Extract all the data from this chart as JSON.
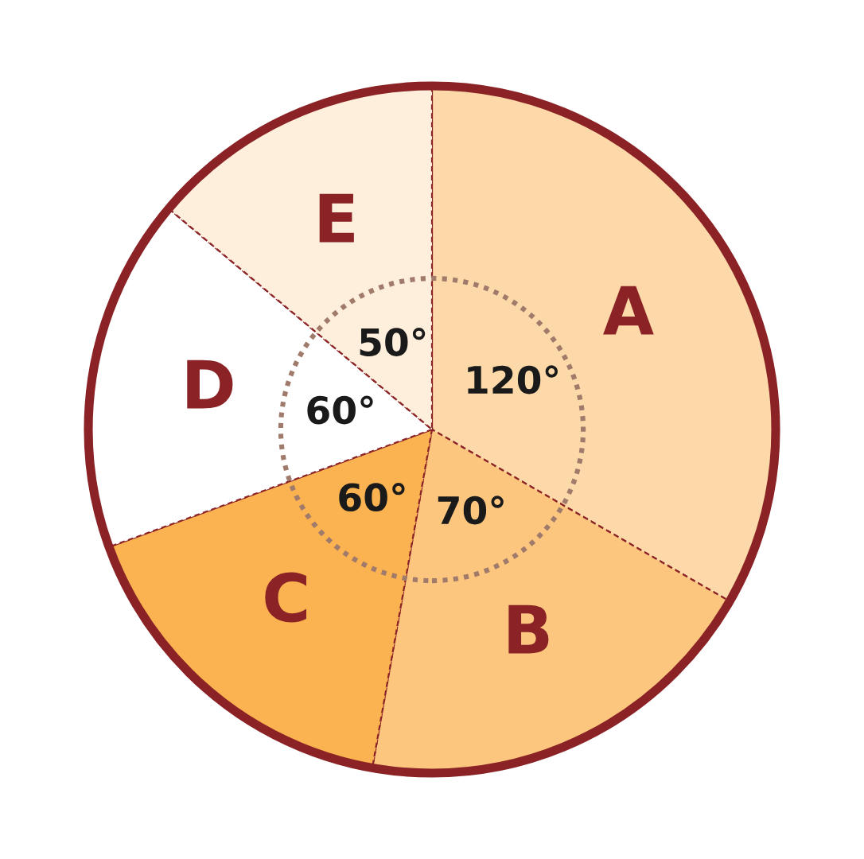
{
  "chart_data": {
    "type": "pie",
    "categories": [
      "A",
      "B",
      "C",
      "D",
      "E"
    ],
    "values": [
      120,
      70,
      60,
      60,
      50
    ],
    "value_labels": [
      "120°",
      "70°",
      "60°",
      "60°",
      "50°"
    ],
    "colors": [
      "#fdd9a9",
      "#fcc67f",
      "#fab350",
      "#ffffff",
      "#feefdc"
    ]
  }
}
